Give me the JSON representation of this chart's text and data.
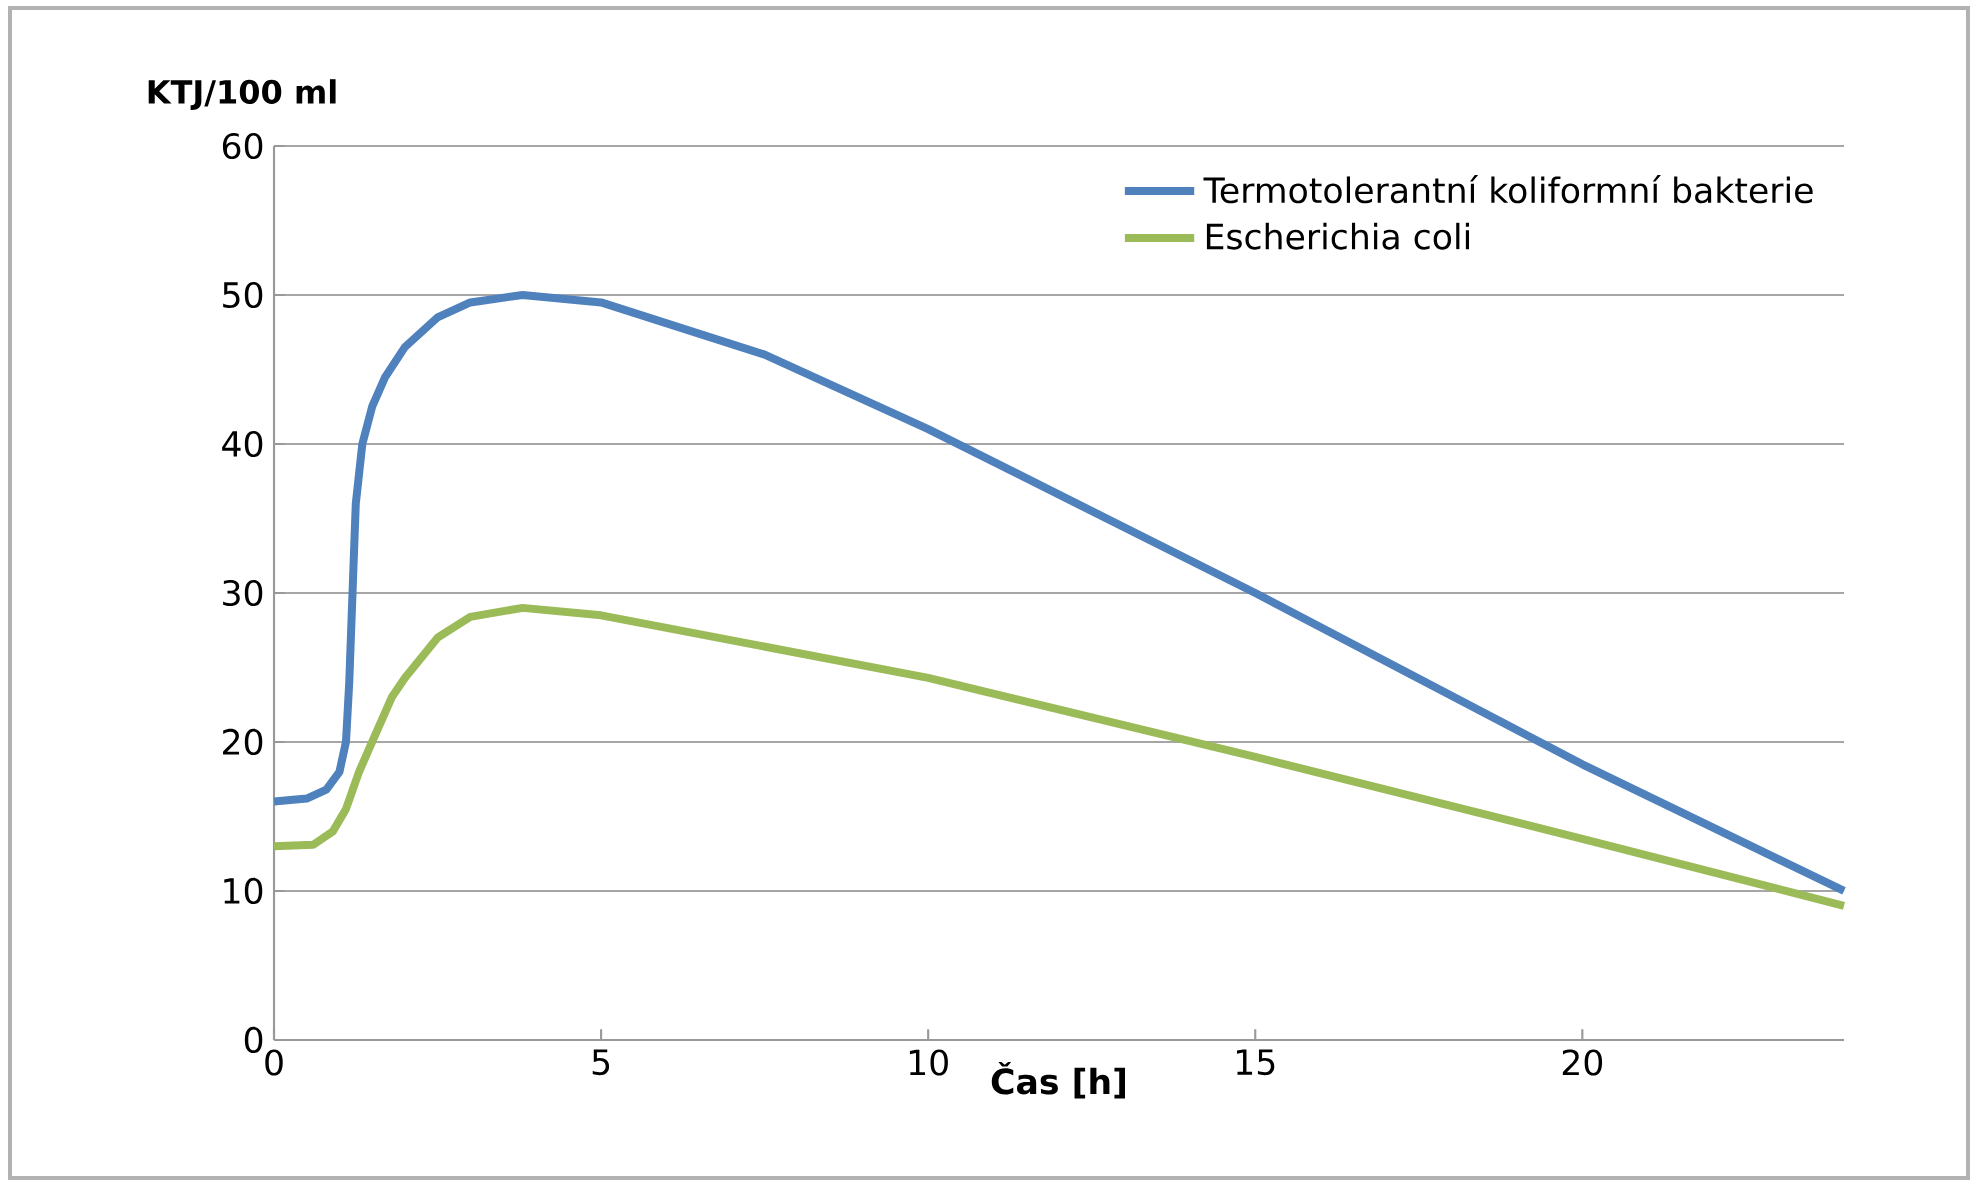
{
  "chart_data": {
    "type": "line",
    "xlabel": "Čas [h]",
    "ylabel": "KTJ/100 ml",
    "xlim": [
      0,
      24
    ],
    "ylim": [
      0,
      60
    ],
    "xticks": [
      0,
      5,
      10,
      15,
      20
    ],
    "yticks": [
      0,
      10,
      20,
      30,
      40,
      50,
      60
    ],
    "grid": "y",
    "legend": "top right",
    "marker": "none",
    "line_style": "solid",
    "series": [
      {
        "name": "Termotolerantní koliformní bakterie",
        "color": "#4f81bd",
        "x": [
          0,
          0.5,
          0.8,
          1.0,
          1.1,
          1.15,
          1.2,
          1.25,
          1.35,
          1.5,
          1.7,
          2.0,
          2.5,
          3.0,
          3.8,
          5,
          7.5,
          10,
          15,
          20,
          24
        ],
        "values": [
          16,
          16.2,
          16.8,
          18,
          20,
          24,
          30,
          36,
          40,
          42.5,
          44.5,
          46.5,
          48.5,
          49.5,
          50,
          49.5,
          46,
          41,
          30,
          18.5,
          10
        ]
      },
      {
        "name": "Escherichia coli",
        "color": "#9bbb59",
        "x": [
          0,
          0.6,
          0.9,
          1.1,
          1.3,
          1.5,
          1.8,
          2.0,
          2.5,
          3.0,
          3.8,
          5,
          10,
          15,
          20,
          24
        ],
        "values": [
          13,
          13.1,
          14,
          15.5,
          18,
          20,
          23,
          24.3,
          27,
          28.4,
          29,
          28.5,
          24.3,
          19,
          13.5,
          9
        ]
      }
    ]
  }
}
